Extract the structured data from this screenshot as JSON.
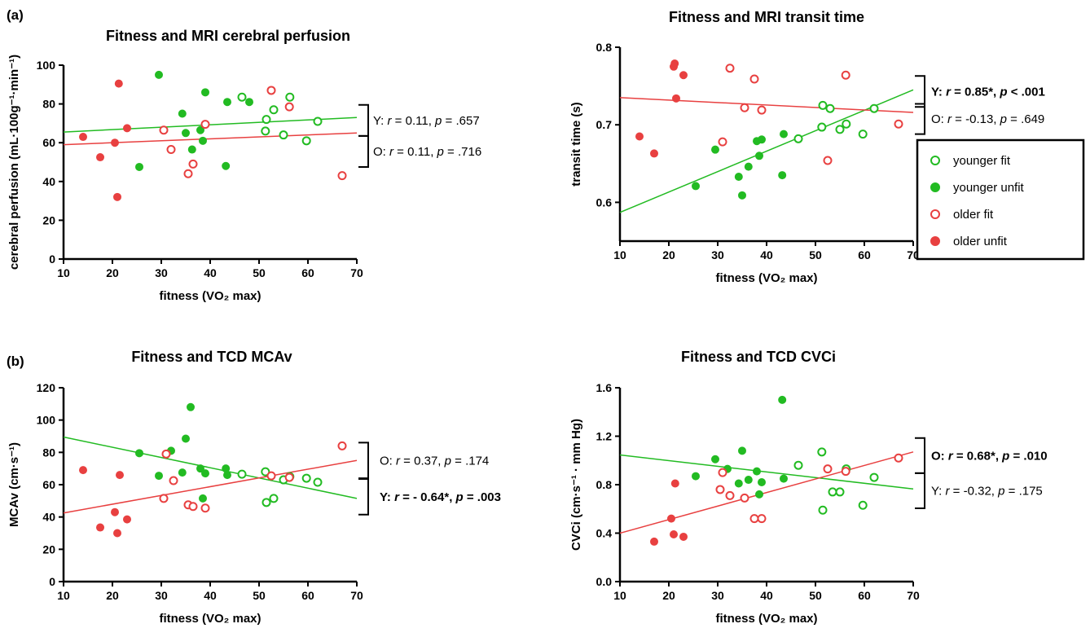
{
  "panel_labels": {
    "a": "(a)",
    "b": "(b)"
  },
  "colors": {
    "younger": "#22bb22",
    "older": "#e84040",
    "axis": "#000000"
  },
  "legend": {
    "items": [
      {
        "label": "younger fit",
        "group": "younger",
        "filled": false
      },
      {
        "label": "younger unfit",
        "group": "younger",
        "filled": true
      },
      {
        "label": "older fit",
        "group": "older",
        "filled": false
      },
      {
        "label": "older unfit",
        "group": "older",
        "filled": true
      }
    ]
  },
  "chart_data": [
    {
      "type": "scatter",
      "title": "Fitness and MRI cerebral perfusion",
      "xlabel": "fitness (VO₂ max)",
      "ylabel": "cerebral perfusion (mL·100g⁻¹·min⁻¹)",
      "xlim": [
        10,
        70
      ],
      "ylim": [
        0,
        100
      ],
      "xticks": [
        "10",
        "20",
        "30",
        "40",
        "50",
        "60",
        "70"
      ],
      "yticks": [
        "0",
        "20",
        "40",
        "60",
        "80",
        "100"
      ],
      "series": [
        {
          "group": "younger",
          "filled": false,
          "points": [
            [
              46.5,
              83.5
            ],
            [
              51.5,
              72
            ],
            [
              51.3,
              66
            ],
            [
              53,
              77
            ],
            [
              55,
              64
            ],
            [
              56.3,
              83.5
            ],
            [
              59.7,
              61
            ],
            [
              62,
              71
            ]
          ]
        },
        {
          "group": "younger",
          "filled": true,
          "points": [
            [
              25.5,
              47.5
            ],
            [
              29.5,
              95
            ],
            [
              34.3,
              75
            ],
            [
              35,
              65
            ],
            [
              36.3,
              56.5
            ],
            [
              38,
              66.5
            ],
            [
              38.5,
              61
            ],
            [
              39,
              86
            ],
            [
              43.2,
              48
            ],
            [
              43.5,
              81
            ],
            [
              48,
              81
            ]
          ]
        },
        {
          "group": "older",
          "filled": false,
          "points": [
            [
              30.5,
              66.5
            ],
            [
              32,
              56.5
            ],
            [
              35.5,
              44
            ],
            [
              36.5,
              49
            ],
            [
              39,
              69.5
            ],
            [
              52.5,
              87
            ],
            [
              56.2,
              78.5
            ],
            [
              67,
              43
            ]
          ]
        },
        {
          "group": "older",
          "filled": true,
          "points": [
            [
              14,
              63
            ],
            [
              17.5,
              52.5
            ],
            [
              20.5,
              60
            ],
            [
              21,
              32
            ],
            [
              21.3,
              90.5
            ],
            [
              23,
              67.5
            ]
          ]
        }
      ],
      "fits": [
        {
          "group": "younger",
          "x": [
            10,
            70
          ],
          "y": [
            65.5,
            73
          ]
        },
        {
          "group": "older",
          "x": [
            10,
            70
          ],
          "y": [
            59,
            65
          ]
        }
      ],
      "annotations": [
        {
          "group": "younger",
          "prefix": "Y: ",
          "r_label": "r",
          "r_text": " = 0.11, ",
          "p_label": "p",
          "p_text": " = .657",
          "bold": false,
          "bracket_range": [
            63.5,
            79.5
          ]
        },
        {
          "group": "older",
          "prefix": "O: ",
          "r_label": "r",
          "r_text": " = 0.11, ",
          "p_label": "p",
          "p_text": " = .716",
          "bold": false,
          "bracket_range": [
            47.5,
            63.5
          ]
        }
      ]
    },
    {
      "type": "scatter",
      "title": "Fitness and MRI transit time",
      "xlabel": "fitness (VO₂ max)",
      "ylabel": "transit time (s)",
      "xlim": [
        10,
        70
      ],
      "ylim": [
        0.55,
        0.8
      ],
      "xticks": [
        "10",
        "20",
        "30",
        "40",
        "50",
        "60",
        "70"
      ],
      "yticks": [
        "0.6",
        "0.7",
        "0.8"
      ],
      "yticks_values": [
        0.6,
        0.7,
        0.8
      ],
      "series": [
        {
          "group": "younger",
          "filled": false,
          "points": [
            [
              46.5,
              0.682
            ],
            [
              51.3,
              0.697
            ],
            [
              51.5,
              0.725
            ],
            [
              53,
              0.721
            ],
            [
              55,
              0.694
            ],
            [
              56.3,
              0.701
            ],
            [
              59.7,
              0.688
            ],
            [
              62,
              0.721
            ]
          ]
        },
        {
          "group": "younger",
          "filled": true,
          "points": [
            [
              25.5,
              0.621
            ],
            [
              29.5,
              0.668
            ],
            [
              34.3,
              0.633
            ],
            [
              35,
              0.609
            ],
            [
              36.3,
              0.646
            ],
            [
              38,
              0.679
            ],
            [
              38.5,
              0.66
            ],
            [
              39,
              0.681
            ],
            [
              43.2,
              0.635
            ],
            [
              43.5,
              0.688
            ]
          ]
        },
        {
          "group": "older",
          "filled": false,
          "points": [
            [
              31,
              0.678
            ],
            [
              32.5,
              0.773
            ],
            [
              35.5,
              0.722
            ],
            [
              37.5,
              0.759
            ],
            [
              39,
              0.719
            ],
            [
              52.5,
              0.654
            ],
            [
              56.2,
              0.764
            ],
            [
              67,
              0.701
            ]
          ]
        },
        {
          "group": "older",
          "filled": true,
          "points": [
            [
              14,
              0.685
            ],
            [
              17,
              0.663
            ],
            [
              21,
              0.775
            ],
            [
              21.2,
              0.779
            ],
            [
              21.5,
              0.734
            ],
            [
              23,
              0.764
            ]
          ]
        }
      ],
      "fits": [
        {
          "group": "younger",
          "x": [
            10,
            70
          ],
          "y": [
            0.587,
            0.745
          ]
        },
        {
          "group": "older",
          "x": [
            10,
            70
          ],
          "y": [
            0.735,
            0.716
          ]
        }
      ],
      "annotations": [
        {
          "group": "younger",
          "prefix": "Y: ",
          "r_label": "r",
          "r_text": " = 0.85*, ",
          "p_label": "p",
          "p_text": " < .001",
          "bold": true,
          "bracket_range": [
            0.723,
            0.763
          ]
        },
        {
          "group": "older",
          "prefix": "O: ",
          "r_label": "r",
          "r_text": " = -0.13, ",
          "p_label": "p",
          "p_text": " = .649",
          "bold": false,
          "bracket_range": [
            0.688,
            0.727
          ]
        }
      ]
    },
    {
      "type": "scatter",
      "title": "Fitness and TCD MCAv",
      "xlabel": "fitness (VO₂ max)",
      "ylabel": "MCAv (cm·s⁻¹)",
      "xlim": [
        10,
        70
      ],
      "ylim": [
        0,
        120
      ],
      "xticks": [
        "10",
        "20",
        "30",
        "40",
        "50",
        "60",
        "70"
      ],
      "yticks": [
        "0",
        "20",
        "40",
        "60",
        "80",
        "100",
        "120"
      ],
      "series": [
        {
          "group": "younger",
          "filled": false,
          "points": [
            [
              46.5,
              66.5
            ],
            [
              51.3,
              68
            ],
            [
              51.5,
              49
            ],
            [
              53,
              51.5
            ],
            [
              55,
              63
            ],
            [
              56.3,
              65
            ],
            [
              59.7,
              64
            ],
            [
              62,
              61.5
            ]
          ]
        },
        {
          "group": "younger",
          "filled": true,
          "points": [
            [
              25.5,
              79.5
            ],
            [
              29.5,
              65.5
            ],
            [
              32,
              81
            ],
            [
              34.3,
              67.5
            ],
            [
              35,
              88.5
            ],
            [
              36,
              108
            ],
            [
              38,
              70
            ],
            [
              38.5,
              51.5
            ],
            [
              39,
              67
            ],
            [
              43.2,
              70
            ],
            [
              43.5,
              66
            ]
          ]
        },
        {
          "group": "older",
          "filled": false,
          "points": [
            [
              30.5,
              51.5
            ],
            [
              31,
              79
            ],
            [
              32.5,
              62.5
            ],
            [
              35.5,
              47.5
            ],
            [
              36.5,
              46.5
            ],
            [
              39,
              45.5
            ],
            [
              52.5,
              65.5
            ],
            [
              56.2,
              64.5
            ],
            [
              67,
              84
            ]
          ]
        },
        {
          "group": "older",
          "filled": true,
          "points": [
            [
              14,
              69
            ],
            [
              17.5,
              33.5
            ],
            [
              20.5,
              43
            ],
            [
              21,
              30
            ],
            [
              21.5,
              66
            ],
            [
              23,
              38.5
            ]
          ]
        }
      ],
      "fits": [
        {
          "group": "younger",
          "x": [
            10,
            70
          ],
          "y": [
            89.5,
            51.5
          ]
        },
        {
          "group": "older",
          "x": [
            10,
            70
          ],
          "y": [
            42.5,
            75
          ]
        }
      ],
      "annotations": [
        {
          "group": "older",
          "prefix": "O: ",
          "r_label": "r",
          "r_text": " = 0.37, ",
          "p_label": "p",
          "p_text": " = .174",
          "bold": false,
          "bracket_range": [
            64,
            86
          ]
        },
        {
          "group": "younger",
          "prefix": "Y: ",
          "r_label": "r",
          "r_text": " = - 0.64*, ",
          "p_label": "p",
          "p_text": " = .003",
          "bold": true,
          "bracket_range": [
            41.5,
            63.5
          ]
        }
      ]
    },
    {
      "type": "scatter",
      "title": "Fitness and TCD CVCi",
      "xlabel": "fitness (VO₂ max)",
      "ylabel": "CVCi (cm·s⁻¹ · mm Hg)",
      "xlim": [
        10,
        70
      ],
      "ylim": [
        0,
        1.6
      ],
      "xticks": [
        "10",
        "20",
        "30",
        "40",
        "50",
        "60",
        "70"
      ],
      "yticks": [
        "0.0",
        "0.4",
        "0.8",
        "1.2",
        "1.6"
      ],
      "yticks_values": [
        0,
        0.4,
        0.8,
        1.2,
        1.6
      ],
      "series": [
        {
          "group": "younger",
          "filled": false,
          "points": [
            [
              46.5,
              0.96
            ],
            [
              51.3,
              1.07
            ],
            [
              51.5,
              0.59
            ],
            [
              53.5,
              0.74
            ],
            [
              55,
              0.74
            ],
            [
              56.3,
              0.93
            ],
            [
              59.7,
              0.63
            ],
            [
              62,
              0.86
            ]
          ]
        },
        {
          "group": "younger",
          "filled": true,
          "points": [
            [
              25.5,
              0.87
            ],
            [
              29.5,
              1.01
            ],
            [
              32,
              0.93
            ],
            [
              34.3,
              0.81
            ],
            [
              35,
              1.08
            ],
            [
              36.3,
              0.84
            ],
            [
              38,
              0.91
            ],
            [
              38.5,
              0.72
            ],
            [
              39,
              0.82
            ],
            [
              43.2,
              1.5
            ],
            [
              43.5,
              0.85
            ]
          ]
        },
        {
          "group": "older",
          "filled": false,
          "points": [
            [
              30.5,
              0.76
            ],
            [
              31,
              0.9
            ],
            [
              32.5,
              0.71
            ],
            [
              35.5,
              0.69
            ],
            [
              37.5,
              0.52
            ],
            [
              39,
              0.52
            ],
            [
              52.5,
              0.93
            ],
            [
              56.2,
              0.91
            ],
            [
              67,
              1.02
            ]
          ]
        },
        {
          "group": "older",
          "filled": true,
          "points": [
            [
              17,
              0.33
            ],
            [
              20.5,
              0.52
            ],
            [
              21,
              0.39
            ],
            [
              21.3,
              0.81
            ],
            [
              23,
              0.37
            ]
          ]
        }
      ],
      "fits": [
        {
          "group": "younger",
          "x": [
            10,
            70
          ],
          "y": [
            1.045,
            0.765
          ]
        },
        {
          "group": "older",
          "x": [
            10,
            70
          ],
          "y": [
            0.4,
            1.07
          ]
        }
      ],
      "annotations": [
        {
          "group": "older",
          "prefix": "O: ",
          "r_label": "r",
          "r_text": " = 0.68*, ",
          "p_label": "p",
          "p_text": " = .010",
          "bold": true,
          "bracket_range": [
            0.895,
            1.185
          ]
        },
        {
          "group": "younger",
          "prefix": "Y: ",
          "r_label": "r",
          "r_text": " = -0.32, ",
          "p_label": "p",
          "p_text": " = .175",
          "bold": false,
          "bracket_range": [
            0.605,
            0.895
          ]
        }
      ]
    }
  ]
}
